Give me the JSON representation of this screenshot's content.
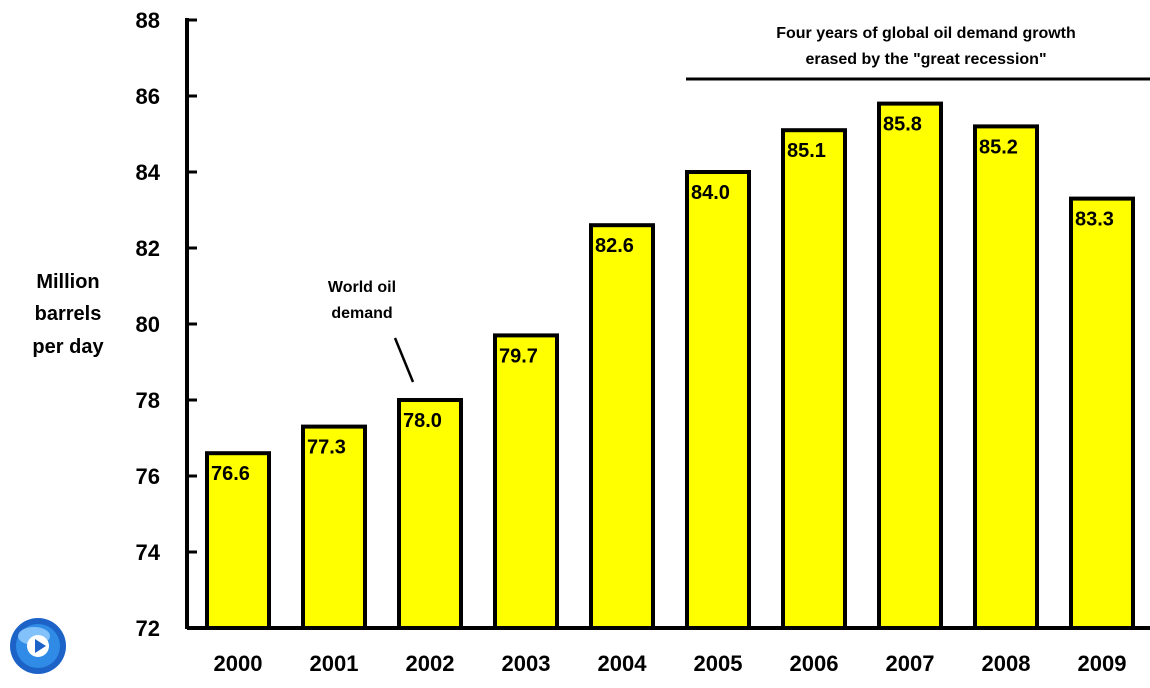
{
  "chart_data": {
    "type": "bar",
    "title": "",
    "xlabel": "",
    "ylabel_lines": [
      "Million",
      "barrels",
      "per day"
    ],
    "ylim": [
      72,
      88
    ],
    "yticks": [
      72,
      74,
      76,
      78,
      80,
      82,
      84,
      86,
      88
    ],
    "categories": [
      "2000",
      "2001",
      "2002",
      "2003",
      "2004",
      "2005",
      "2006",
      "2007",
      "2008",
      "2009"
    ],
    "values": [
      76.6,
      77.3,
      78.0,
      79.7,
      82.6,
      84.0,
      85.1,
      85.8,
      85.2,
      83.3
    ],
    "value_labels": [
      "76.6",
      "77.3",
      "78.0",
      "79.7",
      "82.6",
      "84.0",
      "85.1",
      "85.8",
      "85.2",
      "83.3"
    ],
    "bar_color": "#ffff00",
    "grid": false,
    "annotations": {
      "series_note": [
        "World oil",
        "demand"
      ],
      "recession_note": [
        "Four years of global oil demand growth",
        "erased by the \"great recession\""
      ]
    }
  },
  "corner_icon": "blue-circular-play-icon"
}
